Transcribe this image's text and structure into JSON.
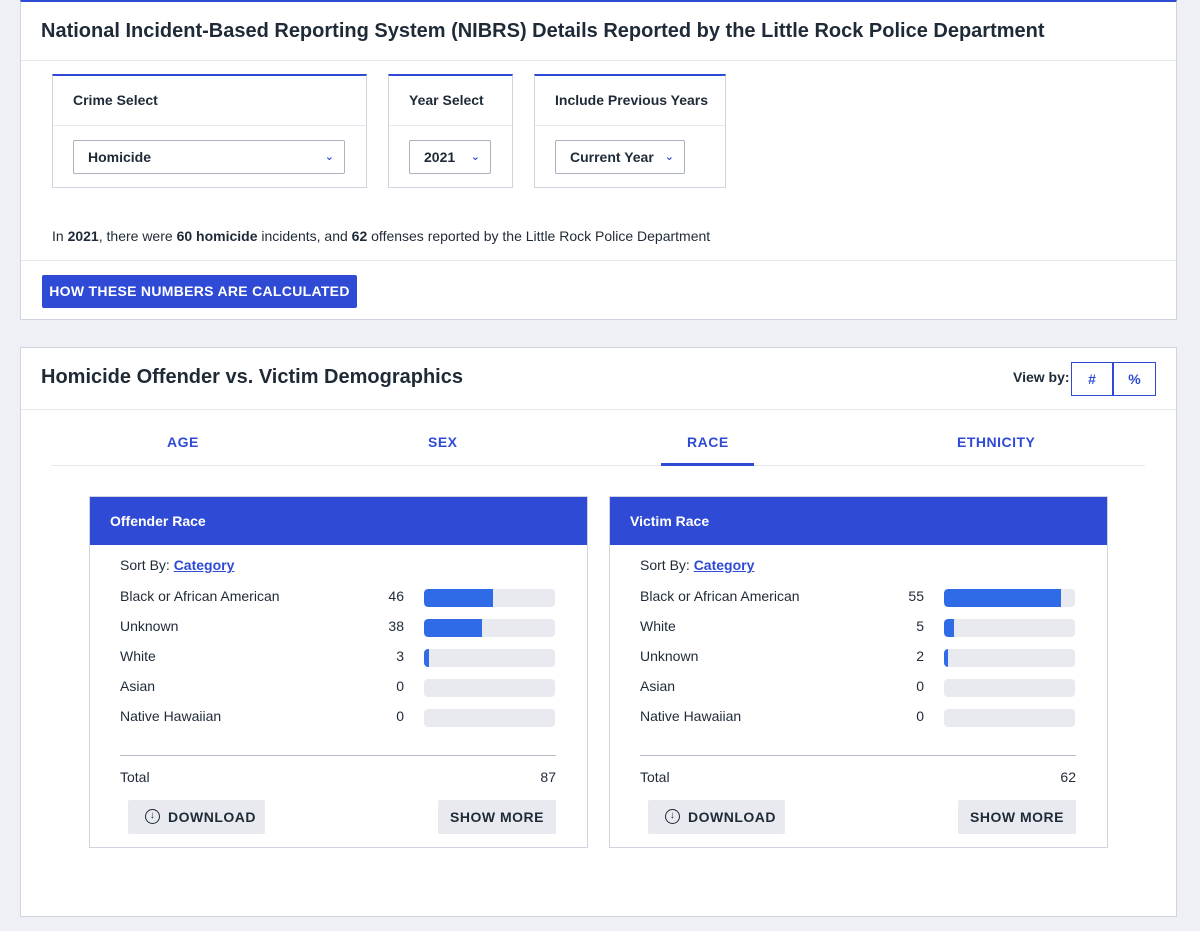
{
  "header": {
    "title": "National Incident-Based Reporting System (NIBRS) Details Reported by the Little Rock Police Department"
  },
  "filters": {
    "crime": {
      "label": "Crime Select",
      "value": "Homicide"
    },
    "year": {
      "label": "Year Select",
      "value": "2021"
    },
    "previous": {
      "label": "Include Previous Years",
      "value": "Current Year"
    }
  },
  "summary": {
    "prefix": "In ",
    "year": "2021",
    "mid1": ", there were ",
    "incidents": "60",
    "crime": "homicide",
    "mid2": " incidents, and ",
    "offenses": "62",
    "suffix": " offenses reported by the Little Rock Police Department"
  },
  "calc_button": "HOW THESE NUMBERS ARE CALCULATED",
  "demographics": {
    "title": "Homicide Offender vs. Victim Demographics",
    "view_by_label": "View by:",
    "view_num": "#",
    "view_pct": "%",
    "tabs": [
      "AGE",
      "SEX",
      "RACE",
      "ETHNICITY"
    ],
    "active_tab": "RACE"
  },
  "offender": {
    "title": "Offender Race",
    "sort_label": "Sort By:",
    "sort_value": "Category",
    "rows": [
      {
        "label": "Black or African American",
        "value": "46",
        "fraction": 0.53
      },
      {
        "label": "Unknown",
        "value": "38",
        "fraction": 0.44
      },
      {
        "label": "White",
        "value": "3",
        "fraction": 0.035
      },
      {
        "label": "Asian",
        "value": "0",
        "fraction": 0
      },
      {
        "label": "Native Hawaiian",
        "value": "0",
        "fraction": 0
      }
    ],
    "total_label": "Total",
    "total": "87",
    "download": "DOWNLOAD",
    "show_more": "SHOW MORE"
  },
  "victim": {
    "title": "Victim Race",
    "sort_label": "Sort By:",
    "sort_value": "Category",
    "rows": [
      {
        "label": "Black or African American",
        "value": "55",
        "fraction": 0.89
      },
      {
        "label": "White",
        "value": "5",
        "fraction": 0.08
      },
      {
        "label": "Unknown",
        "value": "2",
        "fraction": 0.032
      },
      {
        "label": "Asian",
        "value": "0",
        "fraction": 0
      },
      {
        "label": "Native Hawaiian",
        "value": "0",
        "fraction": 0
      }
    ],
    "total_label": "Total",
    "total": "62",
    "download": "DOWNLOAD",
    "show_more": "SHOW MORE"
  },
  "colors": {
    "accent": "#2f4bd6",
    "bar_fill": "#2f6be6",
    "bar_track": "#e8eaef"
  }
}
